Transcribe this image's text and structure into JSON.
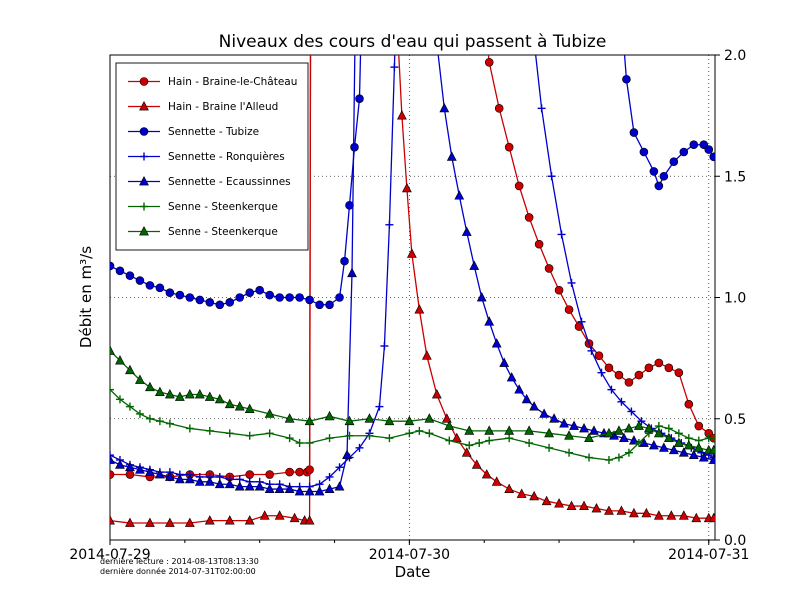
{
  "footer": {
    "line1": "dernière lecture : 2014-08-13T08:13:30",
    "line2": "dernière donnée  2014-07-31T02:00:00"
  },
  "chart_data": {
    "type": "line",
    "title": "Niveaux des cours d'eau qui passent à Tubize",
    "xlabel": "Date",
    "ylabel": "Débit en m³/s",
    "x_unit": "hours since 2014-07-29 00:00",
    "xlim": [
      0,
      48.5
    ],
    "ylim": [
      0,
      2.0
    ],
    "grid": "dotted",
    "legend_position": "upper left",
    "x_ticks": [
      {
        "value": 0,
        "label": "2014-07-29"
      },
      {
        "value": 24,
        "label": "2014-07-30"
      },
      {
        "value": 48,
        "label": "2014-07-31"
      }
    ],
    "x_minor_step": 6,
    "y_ticks": [
      {
        "value": 0,
        "label": "0.0"
      },
      {
        "value": 0.5,
        "label": "0.5"
      },
      {
        "value": 1.0,
        "label": "1.0"
      },
      {
        "value": 1.5,
        "label": "1.5"
      },
      {
        "value": 2.0,
        "label": "2.0"
      }
    ],
    "offscale_note": "values of 2.7 represent readings above the visible axis maximum of 2.0",
    "series": [
      {
        "name": "Hain - Braine-le-Château",
        "color": "#cc0000",
        "marker": "circle",
        "x": [
          0,
          1.6,
          3.2,
          4.8,
          6.4,
          8,
          9.6,
          11.2,
          12.8,
          14.4,
          15.2,
          15.8,
          16,
          16.1,
          17,
          28,
          29.8,
          30.4,
          31.2,
          32,
          32.8,
          33.6,
          34.4,
          35.2,
          36,
          36.8,
          37.6,
          38.4,
          39.2,
          40,
          40.8,
          41.6,
          42.4,
          43.2,
          44,
          44.8,
          45.6,
          46.4,
          47.2,
          48,
          48.4
        ],
        "y": [
          0.27,
          0.27,
          0.26,
          0.26,
          0.27,
          0.27,
          0.26,
          0.27,
          0.27,
          0.28,
          0.28,
          0.28,
          0.29,
          2.7,
          2.7,
          2.7,
          2.25,
          1.97,
          1.78,
          1.62,
          1.46,
          1.33,
          1.22,
          1.12,
          1.03,
          0.95,
          0.88,
          0.81,
          0.76,
          0.71,
          0.68,
          0.65,
          0.68,
          0.71,
          0.73,
          0.71,
          0.69,
          0.56,
          0.47,
          0.44,
          0.42
        ]
      },
      {
        "name": "Hain - Braine l'Alleud",
        "color": "#cc0000",
        "marker": "triangle",
        "x": [
          0,
          1.6,
          3.2,
          4.8,
          6.4,
          8,
          9.6,
          11.2,
          12.4,
          13.6,
          14.8,
          15.6,
          16,
          16.1,
          22.6,
          23,
          23.4,
          23.8,
          24.2,
          24.8,
          25.4,
          26.2,
          27,
          27.8,
          28.6,
          29.4,
          30.2,
          31,
          32,
          33,
          34,
          35,
          36,
          37,
          38,
          39,
          40,
          41,
          42,
          43,
          44,
          45,
          46,
          47,
          48,
          48.4
        ],
        "y": [
          0.08,
          0.07,
          0.07,
          0.07,
          0.07,
          0.08,
          0.08,
          0.08,
          0.1,
          0.1,
          0.09,
          0.08,
          0.08,
          2.7,
          2.7,
          2.15,
          1.75,
          1.45,
          1.18,
          0.95,
          0.76,
          0.6,
          0.5,
          0.42,
          0.36,
          0.31,
          0.27,
          0.24,
          0.21,
          0.19,
          0.18,
          0.16,
          0.15,
          0.14,
          0.14,
          0.13,
          0.12,
          0.12,
          0.11,
          0.11,
          0.1,
          0.1,
          0.1,
          0.09,
          0.09,
          0.09
        ]
      },
      {
        "name": "Sennette - Tubize",
        "color": "#0000cc",
        "marker": "circle",
        "x": [
          0,
          0.8,
          1.6,
          2.4,
          3.2,
          4,
          4.8,
          5.6,
          6.4,
          7.2,
          8,
          8.8,
          9.6,
          10.4,
          11.2,
          12,
          12.8,
          13.6,
          14.4,
          15.2,
          16,
          16.8,
          17.6,
          18.4,
          18.8,
          19.2,
          19.6,
          20,
          20.4,
          40,
          40.8,
          41.4,
          42,
          42.8,
          43.6,
          44,
          44.4,
          45.2,
          46,
          46.8,
          47.6,
          48,
          48.4
        ],
        "y": [
          1.13,
          1.11,
          1.09,
          1.07,
          1.05,
          1.04,
          1.02,
          1.01,
          1.0,
          0.99,
          0.98,
          0.97,
          0.98,
          1.0,
          1.02,
          1.03,
          1.01,
          1.0,
          1.0,
          1.0,
          0.99,
          0.97,
          0.97,
          1.0,
          1.15,
          1.38,
          1.62,
          1.82,
          2.7,
          2.7,
          2.3,
          1.9,
          1.68,
          1.6,
          1.52,
          1.46,
          1.5,
          1.56,
          1.6,
          1.63,
          1.63,
          1.61,
          1.58
        ]
      },
      {
        "name": "Sennette - Ronquières",
        "color": "#0000cc",
        "marker": "plus",
        "x": [
          0,
          0.8,
          1.6,
          2.4,
          3.2,
          4,
          4.8,
          5.6,
          6.4,
          7.2,
          8,
          8.8,
          9.6,
          10.4,
          11.2,
          12,
          12.8,
          13.6,
          14.4,
          15.2,
          16,
          16.8,
          17.6,
          18.4,
          19.2,
          20,
          20.8,
          21.6,
          22,
          22.4,
          22.8,
          23.2,
          33,
          33.8,
          34.6,
          35.4,
          36.2,
          37,
          37.8,
          38.6,
          39.4,
          40.2,
          41,
          41.8,
          42.6,
          43.4,
          44.2,
          45,
          45.8,
          46.6,
          47.4,
          48,
          48.4
        ],
        "y": [
          0.35,
          0.33,
          0.31,
          0.3,
          0.29,
          0.28,
          0.28,
          0.27,
          0.27,
          0.26,
          0.26,
          0.26,
          0.25,
          0.25,
          0.24,
          0.24,
          0.23,
          0.23,
          0.22,
          0.22,
          0.22,
          0.23,
          0.26,
          0.3,
          0.34,
          0.38,
          0.44,
          0.55,
          0.8,
          1.3,
          1.95,
          2.7,
          2.7,
          2.15,
          1.78,
          1.5,
          1.26,
          1.06,
          0.9,
          0.78,
          0.69,
          0.62,
          0.57,
          0.53,
          0.49,
          0.46,
          0.44,
          0.42,
          0.4,
          0.38,
          0.36,
          0.35,
          0.34
        ]
      },
      {
        "name": "Sennette - Ecaussinnes",
        "color": "#0000cc",
        "marker": "triangle",
        "x": [
          0,
          0.8,
          1.6,
          2.4,
          3.2,
          4,
          4.8,
          5.6,
          6.4,
          7.2,
          8,
          8.8,
          9.6,
          10.4,
          11.2,
          12,
          12.8,
          13.6,
          14.4,
          15.2,
          16,
          16.8,
          17.6,
          18.4,
          19,
          19.4,
          19.8,
          25.8,
          26.2,
          26.8,
          27.4,
          28,
          28.6,
          29.2,
          29.8,
          30.4,
          31,
          31.6,
          32.2,
          32.8,
          33.4,
          34,
          34.8,
          35.6,
          36.4,
          37.2,
          38,
          38.8,
          39.6,
          40.4,
          41.2,
          42,
          42.8,
          43.6,
          44.4,
          45.2,
          46,
          46.8,
          47.6,
          48.4
        ],
        "y": [
          0.33,
          0.31,
          0.3,
          0.29,
          0.28,
          0.27,
          0.26,
          0.25,
          0.25,
          0.24,
          0.24,
          0.23,
          0.23,
          0.22,
          0.22,
          0.22,
          0.21,
          0.21,
          0.21,
          0.2,
          0.2,
          0.2,
          0.21,
          0.22,
          0.35,
          1.1,
          2.7,
          2.7,
          2.05,
          1.78,
          1.58,
          1.42,
          1.27,
          1.13,
          1.0,
          0.9,
          0.81,
          0.73,
          0.67,
          0.62,
          0.58,
          0.55,
          0.52,
          0.5,
          0.48,
          0.47,
          0.46,
          0.45,
          0.44,
          0.43,
          0.42,
          0.41,
          0.4,
          0.39,
          0.38,
          0.37,
          0.36,
          0.35,
          0.34,
          0.33
        ]
      },
      {
        "name": "Senne - Steenkerque",
        "color": "#006600",
        "marker": "plus",
        "x": [
          0,
          0.8,
          1.6,
          2.4,
          3.2,
          4,
          4.8,
          6.4,
          8,
          9.6,
          11.2,
          12.8,
          14.4,
          15.2,
          16,
          17.6,
          19.2,
          20.8,
          22.4,
          24,
          24.8,
          25.6,
          27.2,
          28.8,
          29.6,
          30.4,
          32,
          33.6,
          35.2,
          36.8,
          38.4,
          40,
          40.8,
          41.6,
          42.4,
          43.2,
          44,
          44.8,
          45.6,
          46.4,
          47.2,
          48,
          48.4
        ],
        "y": [
          0.62,
          0.58,
          0.55,
          0.52,
          0.5,
          0.49,
          0.48,
          0.46,
          0.45,
          0.44,
          0.43,
          0.44,
          0.42,
          0.4,
          0.4,
          0.42,
          0.43,
          0.43,
          0.42,
          0.44,
          0.45,
          0.44,
          0.41,
          0.39,
          0.4,
          0.41,
          0.42,
          0.4,
          0.38,
          0.36,
          0.34,
          0.33,
          0.34,
          0.36,
          0.4,
          0.44,
          0.47,
          0.46,
          0.44,
          0.42,
          0.41,
          0.42,
          0.42
        ]
      },
      {
        "name": "Senne - Steenkerque",
        "color": "#006600",
        "marker": "triangle",
        "x": [
          0,
          0.8,
          1.6,
          2.4,
          3.2,
          4,
          4.8,
          5.6,
          6.4,
          7.2,
          8,
          8.8,
          9.6,
          10.4,
          11.2,
          12.8,
          14.4,
          16,
          17.6,
          19.2,
          20.8,
          22.4,
          24,
          25.6,
          27.2,
          28.8,
          30.4,
          32,
          33.6,
          35.2,
          36.8,
          38.4,
          40,
          40.8,
          41.6,
          42.4,
          43.2,
          44,
          44.8,
          45.6,
          46.4,
          47.2,
          48,
          48.4
        ],
        "y": [
          0.78,
          0.74,
          0.7,
          0.66,
          0.63,
          0.61,
          0.6,
          0.59,
          0.6,
          0.6,
          0.59,
          0.58,
          0.56,
          0.55,
          0.54,
          0.52,
          0.5,
          0.49,
          0.51,
          0.49,
          0.5,
          0.49,
          0.49,
          0.5,
          0.47,
          0.45,
          0.45,
          0.45,
          0.45,
          0.44,
          0.43,
          0.42,
          0.44,
          0.45,
          0.46,
          0.47,
          0.46,
          0.44,
          0.42,
          0.4,
          0.39,
          0.38,
          0.37,
          0.37
        ]
      }
    ]
  }
}
